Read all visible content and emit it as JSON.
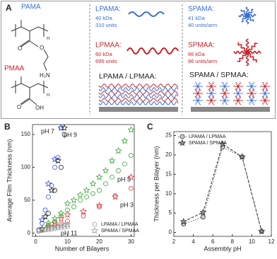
{
  "panel_a": {
    "label": "A",
    "pama": "PAMA",
    "pmaa": "PMAA",
    "pama_structure": {
      "n": "n",
      "carbonyl_o": "O",
      "ester_o": "O",
      "amine": "H₂N"
    },
    "pmaa_structure": {
      "n": "n",
      "carbonyl_o": "O",
      "hydroxyl": "OH"
    },
    "lpama": {
      "name": "LPAMA:",
      "mw": "40 kDa",
      "units": "310 units"
    },
    "lpmaa": {
      "name": "LPMAA:",
      "mw": "60 kDa",
      "units": "695 units"
    },
    "linear_film": "LPAMA / LPMAA:",
    "spama": {
      "name": "SPAMA:",
      "mw": "41 kDa",
      "units": "40 units/arm"
    },
    "spmaa": {
      "name": "SPMAA:",
      "mw": "66 kDa",
      "units": "96 units/arm"
    },
    "star_film": "SPAMA / SPMAA:"
  },
  "chart_data": [
    {
      "type": "scatter",
      "label": "B",
      "xlabel": "Number of Bilayers",
      "ylabel": "Average Film Thickness (nm)",
      "xlim": [
        -1,
        31
      ],
      "ylim": [
        -5,
        165
      ],
      "xticks": [
        0,
        10,
        20,
        30
      ],
      "yticks": [
        0,
        50,
        100,
        150
      ],
      "legend": [
        {
          "label": "LPAMA / LPMAA",
          "marker": "circle"
        },
        {
          "label": "SPAMA / SPMAA",
          "marker": "star"
        }
      ],
      "legend_color": "#999999",
      "legend_position": "lower right",
      "annotations": [
        {
          "text": "pH 7",
          "color": "#3a4fd8"
        },
        {
          "text": "pH 9",
          "color": "#222222"
        },
        {
          "text": "pH 5",
          "color": "#3aa63a"
        },
        {
          "text": "pH 3",
          "color": "#e0393e"
        },
        {
          "text": "pH 11",
          "color": "#999999"
        }
      ],
      "series": [
        {
          "marker": "circle",
          "color": "#e0393e",
          "x": [
            2,
            4,
            6,
            8,
            10,
            15,
            20,
            25,
            30
          ],
          "values": [
            5,
            8,
            12,
            14,
            18,
            26,
            40,
            57,
            68
          ]
        },
        {
          "marker": "star",
          "color": "#e0393e",
          "x": [
            2,
            4,
            6,
            8,
            10,
            15,
            20,
            25,
            30
          ],
          "values": [
            6,
            10,
            15,
            22,
            28,
            33,
            42,
            55,
            85
          ]
        },
        {
          "marker": "circle",
          "color": "#3aa63a",
          "x": [
            2,
            4,
            6,
            8,
            10,
            12,
            14,
            16,
            18,
            20,
            22,
            24,
            26,
            28,
            30
          ],
          "values": [
            6,
            12,
            18,
            26,
            35,
            40,
            50,
            55,
            60,
            65,
            75,
            85,
            95,
            105,
            118
          ]
        },
        {
          "marker": "star",
          "color": "#3aa63a",
          "x": [
            2,
            4,
            6,
            8,
            10,
            12,
            14,
            16,
            18,
            20,
            22,
            24,
            26,
            28,
            30
          ],
          "values": [
            7,
            15,
            22,
            30,
            45,
            50,
            58,
            65,
            75,
            85,
            95,
            110,
            125,
            140,
            157
          ]
        },
        {
          "marker": "circle",
          "color": "#3a4fd8",
          "x": [
            1,
            2,
            3,
            4,
            5,
            6,
            7,
            8
          ],
          "values": [
            5,
            15,
            35,
            55,
            72,
            100,
            115,
            160
          ]
        },
        {
          "marker": "star",
          "color": "#3a4fd8",
          "x": [
            2,
            4,
            6,
            8
          ],
          "values": [
            20,
            75,
            112,
            160
          ]
        },
        {
          "marker": "circle",
          "color": "#222222",
          "x": [
            2,
            4,
            6,
            8,
            9
          ],
          "values": [
            5,
            30,
            65,
            100,
            150
          ]
        },
        {
          "marker": "star",
          "color": "#222222",
          "x": [
            3,
            5,
            7,
            9
          ],
          "values": [
            25,
            65,
            110,
            160
          ]
        },
        {
          "marker": "circle",
          "color": "#999999",
          "x": [
            1,
            2,
            3,
            4,
            5,
            6,
            7,
            8,
            9,
            10
          ],
          "values": [
            3,
            4,
            5,
            5,
            6,
            7,
            8,
            8,
            9,
            10
          ]
        },
        {
          "marker": "star",
          "color": "#999999",
          "x": [
            1,
            2,
            3,
            4,
            5,
            6,
            7,
            8,
            9,
            10
          ],
          "values": [
            4,
            5,
            6,
            7,
            8,
            9,
            10,
            11,
            12,
            13
          ]
        }
      ]
    },
    {
      "type": "line",
      "label": "C",
      "xlabel": "Assembly pH",
      "ylabel": "Thickness per Bilayer (nm)",
      "xlim": [
        2,
        12
      ],
      "ylim": [
        -1,
        26
      ],
      "xticks": [
        2,
        4,
        6,
        8,
        10,
        12
      ],
      "yticks": [
        0,
        5,
        10,
        15,
        20,
        25
      ],
      "legend_position": "upper left",
      "series": [
        {
          "name": "LPAMA / LPMAA",
          "marker": "circle",
          "dash": "1.5 2",
          "color": "#555555",
          "x": [
            3,
            5,
            7,
            9,
            11
          ],
          "values": [
            2.2,
            4,
            22,
            19.5,
            0.3
          ]
        },
        {
          "name": "SPAMA / SPMAA",
          "marker": "star",
          "dash": "4 2",
          "color": "#333333",
          "x": [
            3,
            5,
            7,
            9,
            11
          ],
          "values": [
            2.8,
            5.2,
            22.8,
            19.5,
            0.3
          ]
        }
      ]
    }
  ]
}
